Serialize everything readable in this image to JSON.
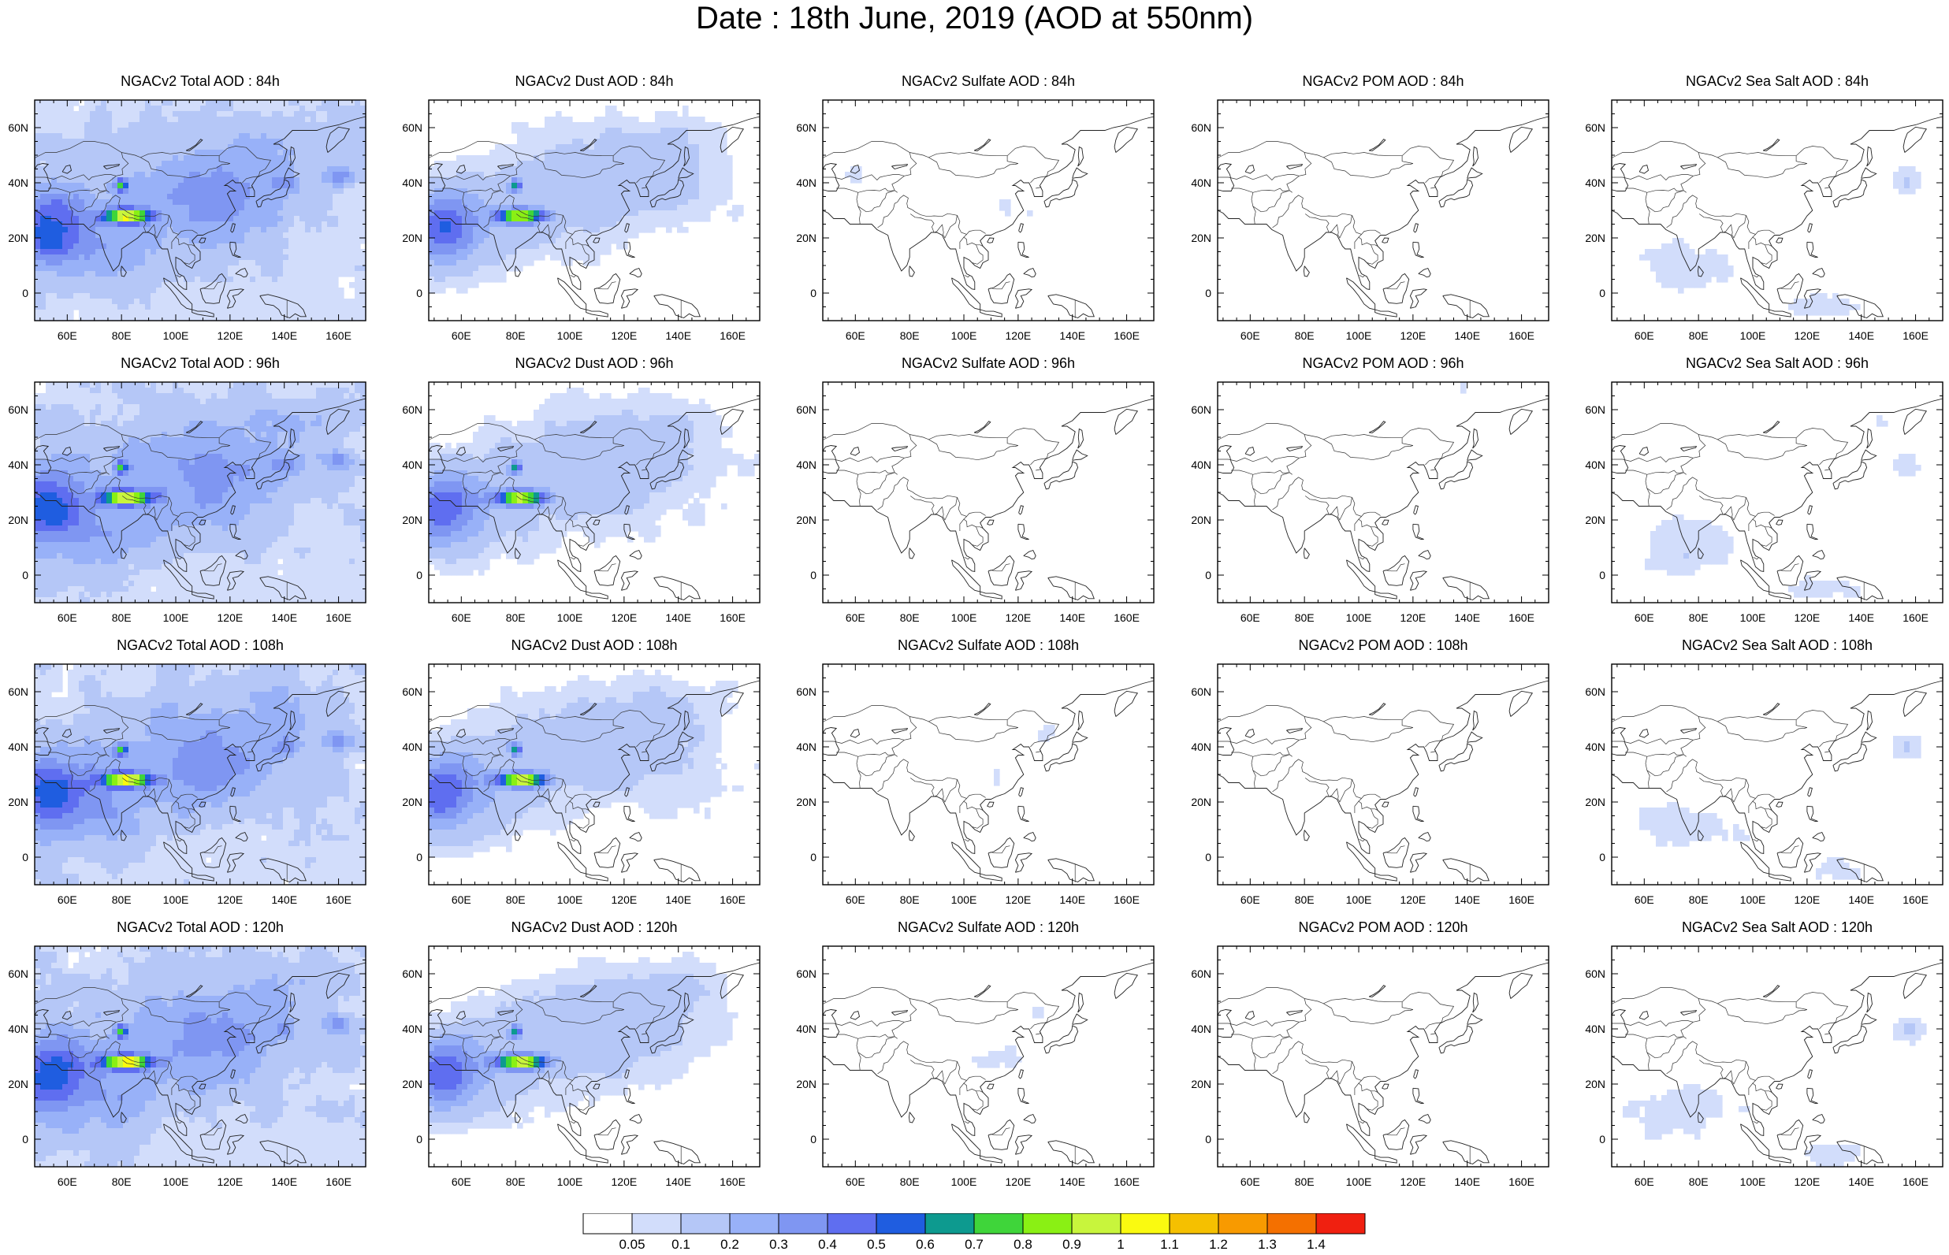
{
  "title": "Date : 18th June, 2019 (AOD at 550nm)",
  "species": [
    "Total",
    "Dust",
    "Sulfate",
    "POM",
    "SeaSalt"
  ],
  "panel_titles": [
    [
      "NGACv2 Total AOD : 84h",
      "NGACv2 Dust AOD : 84h",
      "NGACv2 Sulfate AOD : 84h",
      "NGACv2 POM AOD : 84h",
      "NGACv2 Sea Salt AOD : 84h"
    ],
    [
      "NGACv2 Total AOD : 96h",
      "NGACv2 Dust AOD : 96h",
      "NGACv2 Sulfate AOD : 96h",
      "NGACv2 POM AOD : 96h",
      "NGACv2 Sea Salt AOD : 96h"
    ],
    [
      "NGACv2 Total AOD : 108h",
      "NGACv2 Dust AOD : 108h",
      "NGACv2 Sulfate AOD : 108h",
      "NGACv2 POM AOD : 108h",
      "NGACv2 Sea Salt AOD : 108h"
    ],
    [
      "NGACv2 Total AOD : 120h",
      "NGACv2 Dust AOD : 120h",
      "NGACv2 Sulfate AOD : 120h",
      "NGACv2 POM AOD : 120h",
      "NGACv2 Sea Salt  AOD : 120h"
    ]
  ],
  "forecast_hours": [
    "84h",
    "96h",
    "108h",
    "120h"
  ],
  "map_extent": {
    "lon": [
      48,
      170
    ],
    "lat": [
      -10,
      70
    ]
  },
  "lon_ticks": [
    "60E",
    "80E",
    "100E",
    "120E",
    "140E",
    "160E"
  ],
  "lon_tick_values": [
    60,
    80,
    100,
    120,
    140,
    160
  ],
  "lat_ticks": [
    "60N",
    "40N",
    "20N",
    "0"
  ],
  "lat_tick_values": [
    60,
    40,
    20,
    0
  ],
  "colorbar": {
    "labels": [
      "0.05",
      "0.1",
      "0.2",
      "0.3",
      "0.4",
      "0.5",
      "0.6",
      "0.7",
      "0.8",
      "0.9",
      "1",
      "1.1",
      "1.2",
      "1.3",
      "1.4"
    ],
    "colors": [
      "#ffffff",
      "#d2ddfb",
      "#b5c7f7",
      "#98b1f8",
      "#7f96f2",
      "#5f6ef0",
      "#1f5de0",
      "#0d9a8f",
      "#3fd53a",
      "#8af014",
      "#c8f53c",
      "#fafa10",
      "#f5c000",
      "#f89a00",
      "#f47000",
      "#f02010"
    ]
  }
}
